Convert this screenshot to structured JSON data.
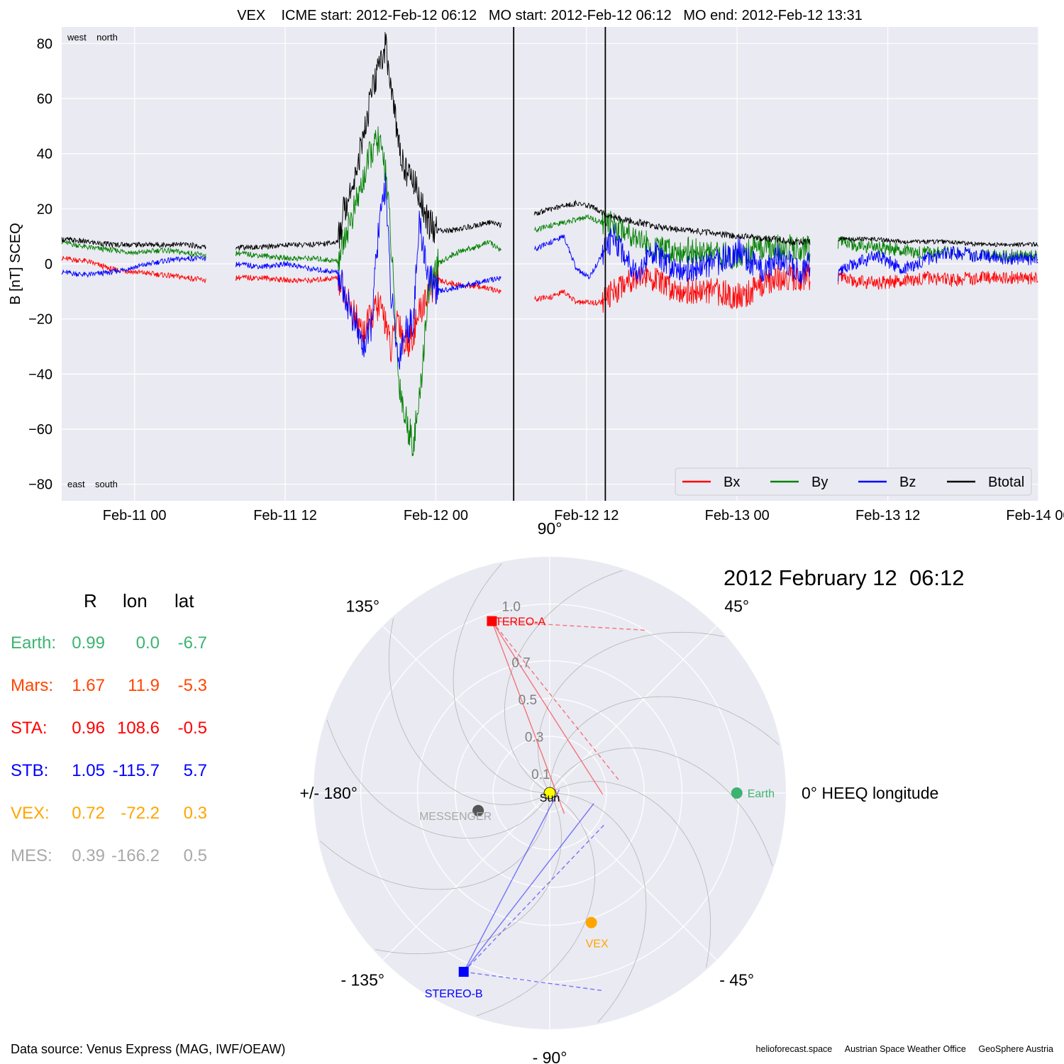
{
  "title": "VEX    ICME start: 2012-Feb-12 06:12   MO start: 2012-Feb-12 06:12   MO end: 2012-Feb-12 13:31",
  "chart_data": [
    {
      "type": "line",
      "title": "VEX    ICME start: 2012-Feb-12 06:12   MO start: 2012-Feb-12 06:12   MO end: 2012-Feb-12 13:31",
      "ylabel": "B [nT] SCEQ",
      "xlabel": "",
      "x_unit": "hours since 2012-Feb-10 18:12",
      "xlim": [
        0,
        77.8
      ],
      "ylim": [
        -86,
        86
      ],
      "grid": true,
      "xticks": [
        {
          "label": "Feb-11 00",
          "x": 5.8
        },
        {
          "label": "Feb-11 12",
          "x": 17.8
        },
        {
          "label": "Feb-12 00",
          "x": 29.8
        },
        {
          "label": "Feb-12 12",
          "x": 41.8
        },
        {
          "label": "Feb-13 00",
          "x": 53.8
        },
        {
          "label": "Feb-13 12",
          "x": 65.8
        },
        {
          "label": "Feb-14 00",
          "x": 77.8
        }
      ],
      "yticks": [
        80,
        60,
        40,
        20,
        0,
        -20,
        -40,
        -60,
        -80
      ],
      "vlines": [
        36.0,
        43.3
      ],
      "corner_labels": {
        "top": "west    north",
        "bottom": "east    south"
      },
      "legend": {
        "position": "lower-right",
        "entries": [
          "Bx",
          "By",
          "Bz",
          "Btotal"
        ]
      },
      "colors": {
        "Bx": "#ff0000",
        "By": "#008000",
        "Bz": "#0000ff",
        "Btotal": "#000000"
      },
      "data_gaps": [
        [
          11.5,
          13.8
        ],
        [
          35.0,
          37.6
        ],
        [
          59.6,
          61.8
        ]
      ],
      "series": [
        {
          "name": "Bx",
          "x": [
            0,
            2,
            4,
            6,
            8,
            10,
            11.5,
            13.8,
            16,
            18,
            20,
            22,
            22.5,
            23.2,
            24,
            24.6,
            25.2,
            25.8,
            26.2,
            26.8,
            27.3,
            28,
            28.5,
            29.2,
            30,
            31,
            32,
            33,
            34,
            35,
            37.6,
            39,
            40,
            41,
            42,
            43,
            44,
            45,
            46,
            47,
            48,
            50,
            52,
            54,
            55,
            56,
            57,
            58,
            59,
            59.6,
            61.8,
            63,
            65,
            67,
            69,
            71,
            73,
            75,
            77.8
          ],
          "y": [
            2,
            1,
            -2,
            -3,
            -4,
            -5,
            -6,
            -5,
            -5,
            -6,
            -6,
            -5,
            -10,
            -18,
            -25,
            -20,
            -15,
            -20,
            -32,
            -18,
            -30,
            -25,
            -18,
            -10,
            -6,
            -7,
            -8,
            -8,
            -9,
            -10,
            -13,
            -12,
            -10,
            -14,
            -14,
            -14,
            -10,
            -6,
            -4,
            -5,
            -8,
            -10,
            -10,
            -12,
            -10,
            -7,
            -5,
            -5,
            -5,
            -5,
            -5,
            -6,
            -7,
            -6,
            -5,
            -6,
            -5,
            -5,
            -5
          ]
        },
        {
          "name": "By",
          "x": [
            0,
            2,
            4,
            6,
            8,
            10,
            11.5,
            13.8,
            16,
            18,
            20,
            22,
            22.5,
            23.2,
            24,
            24.6,
            25.2,
            25.8,
            26.2,
            26.8,
            27.3,
            28,
            28.5,
            29.2,
            30,
            31,
            32,
            33,
            34,
            35,
            37.6,
            39,
            40,
            41,
            42,
            43,
            44,
            45,
            46,
            47,
            48,
            50,
            52,
            54,
            55,
            56,
            57,
            58,
            59,
            59.6,
            61.8,
            63,
            65,
            67,
            69,
            71,
            73,
            75,
            77.8
          ],
          "y": [
            8,
            6,
            5,
            4,
            5,
            4,
            3,
            4,
            3,
            2,
            2,
            1,
            10,
            18,
            30,
            40,
            45,
            35,
            10,
            -40,
            -55,
            -65,
            -50,
            -10,
            0,
            3,
            5,
            6,
            8,
            5,
            12,
            14,
            15,
            16,
            17,
            15,
            14,
            12,
            10,
            5,
            5,
            5,
            3,
            3,
            5,
            6,
            6,
            6,
            6,
            5,
            8,
            7,
            6,
            5,
            4,
            4,
            3,
            3,
            3
          ]
        },
        {
          "name": "Bz",
          "x": [
            0,
            2,
            4,
            6,
            8,
            10,
            11.5,
            13.8,
            16,
            18,
            20,
            22,
            22.5,
            23.2,
            24,
            24.6,
            25.2,
            25.8,
            26.2,
            26.8,
            27.3,
            28,
            28.5,
            29.2,
            30,
            31,
            32,
            33,
            34,
            35,
            37.6,
            39,
            40,
            41,
            42,
            43,
            44,
            45,
            46,
            47,
            48,
            50,
            52,
            54,
            55,
            56,
            57,
            58,
            59,
            59.6,
            61.8,
            63,
            65,
            67,
            69,
            71,
            73,
            75,
            77.8
          ],
          "y": [
            -3,
            -4,
            -3,
            -1,
            1,
            2,
            2,
            0,
            -1,
            0,
            -2,
            -3,
            -10,
            -20,
            -30,
            -25,
            10,
            30,
            -10,
            -35,
            -25,
            -20,
            15,
            -5,
            -10,
            -9,
            -8,
            -7,
            -6,
            -5,
            5,
            8,
            10,
            -2,
            -5,
            3,
            10,
            2,
            -3,
            5,
            0,
            -2,
            0,
            5,
            0,
            -3,
            3,
            0,
            -3,
            0,
            -4,
            0,
            3,
            -2,
            2,
            4,
            3,
            2,
            2
          ]
        },
        {
          "name": "Btotal",
          "x": [
            0,
            2,
            4,
            6,
            8,
            10,
            11.5,
            13.8,
            16,
            18,
            20,
            22,
            22.5,
            23.2,
            24,
            24.6,
            25.2,
            25.8,
            26.2,
            26.8,
            27.3,
            28,
            28.5,
            29.2,
            30,
            31,
            32,
            33,
            34,
            35,
            37.6,
            39,
            40,
            41,
            42,
            43,
            44,
            45,
            46,
            47,
            48,
            50,
            52,
            54,
            55,
            56,
            57,
            58,
            59,
            59.6,
            61.8,
            63,
            65,
            67,
            69,
            71,
            73,
            75,
            77.8
          ],
          "y": [
            9,
            8,
            7,
            7,
            7,
            7,
            6,
            6,
            6,
            7,
            7,
            8,
            20,
            30,
            45,
            60,
            70,
            80,
            65,
            45,
            35,
            30,
            25,
            15,
            12,
            12,
            13,
            14,
            15,
            14,
            18,
            20,
            21,
            22,
            21,
            19,
            17,
            16,
            15,
            14,
            13,
            12,
            11,
            10,
            10,
            9,
            9,
            8,
            8,
            8,
            9,
            9,
            9,
            8,
            8,
            8,
            7,
            7,
            7
          ]
        }
      ]
    },
    {
      "type": "polar",
      "title": "2012 February 12  06:12",
      "radial_ticks": [
        0.1,
        0.3,
        0.5,
        0.7,
        1.0
      ],
      "rmax": 1.25,
      "angle_labels": [
        {
          "deg": 90,
          "label": "90°"
        },
        {
          "deg": 45,
          "label": "45°"
        },
        {
          "deg": 0,
          "label": "0° HEEQ longitude"
        },
        {
          "deg": -45,
          "label": "- 45°"
        },
        {
          "deg": -90,
          "label": "- 90°"
        },
        {
          "deg": -135,
          "label": "- 135°"
        },
        {
          "deg": 180,
          "label": "+/- 180°"
        },
        {
          "deg": 135,
          "label": "135°"
        }
      ],
      "objects": [
        {
          "name": "Sun",
          "r": 0,
          "lon": 0,
          "color": "#ffff00",
          "marker": "circle"
        },
        {
          "name": "Earth",
          "r": 0.99,
          "lon": 0.0,
          "color": "#3cb371",
          "marker": "circle"
        },
        {
          "name": "STEREO-A",
          "r": 0.96,
          "lon": 108.6,
          "color": "#ff0000",
          "marker": "square"
        },
        {
          "name": "STEREO-B",
          "r": 1.05,
          "lon": -115.7,
          "color": "#0000ff",
          "marker": "square"
        },
        {
          "name": "VEX",
          "r": 0.72,
          "lon": -72.2,
          "color": "#ffa500",
          "marker": "circle"
        },
        {
          "name": "MESSENGER",
          "r": 0.39,
          "lon": -166.2,
          "color": "#555555",
          "marker": "circle"
        }
      ]
    }
  ],
  "positions": {
    "headers": [
      "R",
      "lon",
      "lat"
    ],
    "rows": [
      {
        "name": "Earth:",
        "R": "0.99",
        "lon": "0.0",
        "lat": "-6.7",
        "color": "#3cb371"
      },
      {
        "name": "Mars:",
        "R": "1.67",
        "lon": "11.9",
        "lat": "-5.3",
        "color": "#ff4500"
      },
      {
        "name": "STA:",
        "R": "0.96",
        "lon": "108.6",
        "lat": "-0.5",
        "color": "#ff0000"
      },
      {
        "name": "STB:",
        "R": "1.05",
        "lon": "-115.7",
        "lat": "5.7",
        "color": "#0000ff"
      },
      {
        "name": "VEX:",
        "R": "0.72",
        "lon": "-72.2",
        "lat": "0.3",
        "color": "#ffa500"
      },
      {
        "name": "MES:",
        "R": "0.39",
        "lon": "-166.2",
        "lat": "0.5",
        "color": "#a9a9a9"
      }
    ]
  },
  "footer": {
    "data_source": "Data source: Venus Express (MAG, IWF/OEAW)",
    "credits": [
      "helioforecast.space",
      "Austrian Space Weather Office",
      "GeoSphere Austria"
    ]
  },
  "colors": {
    "background": "#eaeaf2",
    "grid": "#ffffff"
  }
}
